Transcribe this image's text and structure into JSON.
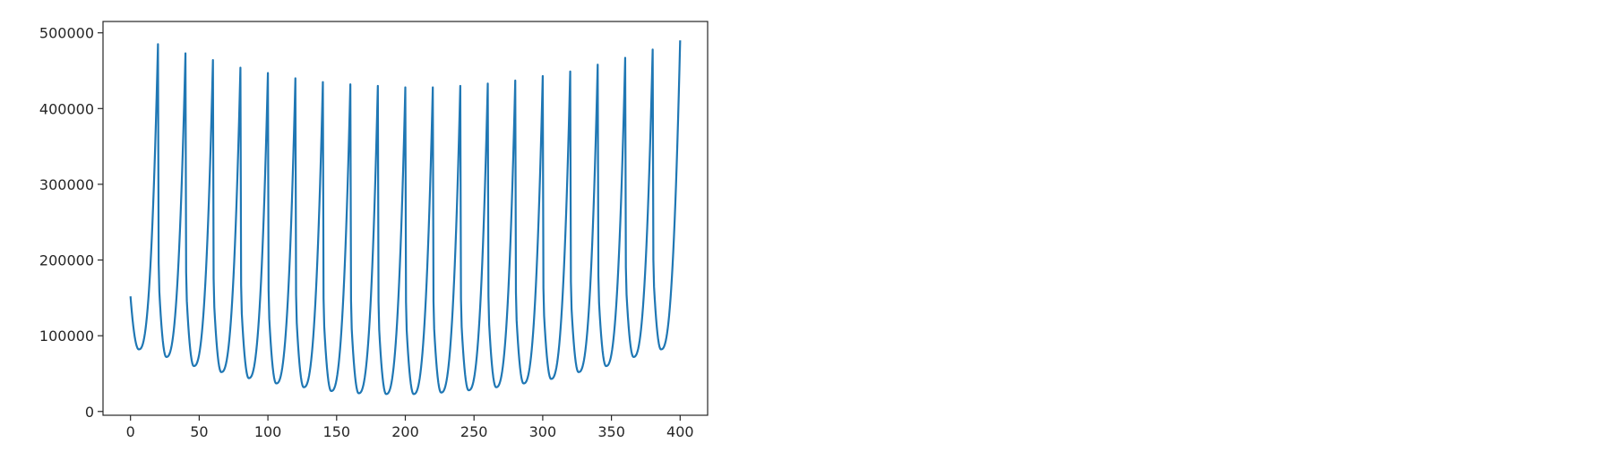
{
  "chart_data": {
    "type": "line",
    "title": "",
    "xlabel": "",
    "ylabel": "",
    "xlim": [
      -20,
      420
    ],
    "ylim": [
      -5000,
      515000
    ],
    "grid": false,
    "legend": "none",
    "xticks": [
      0,
      50,
      100,
      150,
      200,
      250,
      300,
      350,
      400
    ],
    "xtick_labels": [
      "0",
      "50",
      "100",
      "150",
      "200",
      "250",
      "300",
      "350",
      "400"
    ],
    "yticks": [
      0,
      100000,
      200000,
      300000,
      400000,
      500000
    ],
    "ytick_labels": [
      "0",
      "100000",
      "200000",
      "300000",
      "400000",
      "500000"
    ],
    "series": [
      {
        "color": "#1f77b4",
        "cycle_length": 20,
        "x": [
          0,
          20,
          40,
          60,
          80,
          100,
          120,
          140,
          160,
          180,
          200,
          220,
          240,
          260,
          280,
          300,
          320,
          340,
          360,
          380,
          400
        ],
        "peak_values": [
          485000,
          473000,
          464000,
          454000,
          447000,
          440000,
          435000,
          432000,
          430000,
          428000,
          428000,
          430000,
          433000,
          437000,
          443000,
          449000,
          458000,
          467000,
          478000,
          490000
        ],
        "trough_values": [
          82000,
          72000,
          60000,
          52000,
          44000,
          37000,
          32000,
          27000,
          24000,
          23000,
          23000,
          25000,
          28000,
          32000,
          37000,
          43000,
          52000,
          60000,
          72000,
          82000
        ],
        "start_value": 152000,
        "trough_offset": 6
      }
    ]
  }
}
